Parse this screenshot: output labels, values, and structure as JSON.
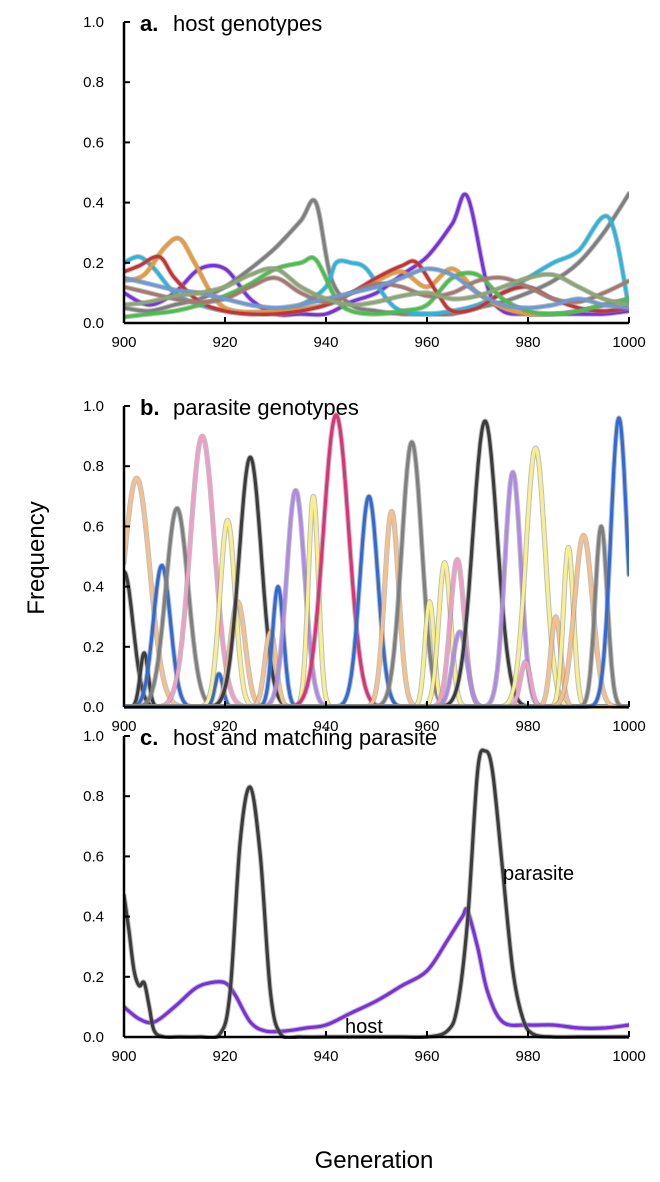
{
  "figure": {
    "ylabel": "Frequency",
    "xlabel": "Generation"
  },
  "chart_data": [
    {
      "type": "line",
      "panel_letter": "a.",
      "title": "host genotypes",
      "xlim": [
        900,
        1000
      ],
      "ylim": [
        0,
        1.0
      ],
      "xticks": [
        900,
        920,
        940,
        960,
        980,
        1000
      ],
      "yticks": [
        "0.0",
        "0.2",
        "0.4",
        "0.6",
        "0.8",
        "1.0"
      ],
      "grid": false,
      "series": [
        {
          "color": "#7b2ee6",
          "x": [
            900,
            905,
            910,
            915,
            920,
            925,
            930,
            935,
            940,
            945,
            950,
            955,
            960,
            965,
            968,
            972,
            975,
            980,
            985,
            990,
            995,
            1000
          ],
          "y": [
            0.1,
            0.06,
            0.1,
            0.18,
            0.18,
            0.08,
            0.03,
            0.03,
            0.03,
            0.07,
            0.1,
            0.16,
            0.22,
            0.33,
            0.42,
            0.12,
            0.04,
            0.03,
            0.03,
            0.03,
            0.03,
            0.04
          ]
        },
        {
          "color": "#7f7f7f",
          "x": [
            900,
            905,
            910,
            915,
            920,
            925,
            930,
            935,
            938,
            941,
            945,
            950,
            955,
            960,
            965,
            970,
            975,
            980,
            985,
            990,
            995,
            1000
          ],
          "y": [
            0.05,
            0.04,
            0.06,
            0.08,
            0.12,
            0.18,
            0.25,
            0.34,
            0.4,
            0.15,
            0.06,
            0.04,
            0.03,
            0.03,
            0.03,
            0.05,
            0.07,
            0.1,
            0.14,
            0.2,
            0.3,
            0.43
          ]
        },
        {
          "color": "#22b8e6",
          "x": [
            900,
            903,
            906,
            910,
            915,
            920,
            925,
            930,
            935,
            940,
            942,
            945,
            948,
            952,
            955,
            960,
            965,
            970,
            975,
            980,
            985,
            990,
            996,
            1000
          ],
          "y": [
            0.2,
            0.22,
            0.18,
            0.1,
            0.06,
            0.04,
            0.03,
            0.04,
            0.06,
            0.12,
            0.2,
            0.2,
            0.18,
            0.08,
            0.04,
            0.03,
            0.04,
            0.06,
            0.1,
            0.15,
            0.2,
            0.24,
            0.35,
            0.05
          ]
        },
        {
          "color": "#ee9a2e",
          "x": [
            900,
            904,
            908,
            911,
            914,
            918,
            922,
            930,
            940,
            945,
            950,
            955,
            960,
            965,
            970,
            975,
            980,
            985,
            990,
            995,
            1000
          ],
          "y": [
            0.14,
            0.16,
            0.25,
            0.28,
            0.2,
            0.08,
            0.04,
            0.04,
            0.06,
            0.1,
            0.14,
            0.17,
            0.12,
            0.18,
            0.1,
            0.05,
            0.03,
            0.03,
            0.04,
            0.06,
            0.08
          ]
        },
        {
          "color": "#cc3030",
          "x": [
            900,
            903,
            907,
            910,
            915,
            920,
            925,
            930,
            935,
            940,
            945,
            950,
            955,
            958,
            962,
            965,
            970,
            975,
            980,
            985,
            990,
            995,
            1000
          ],
          "y": [
            0.17,
            0.19,
            0.22,
            0.15,
            0.07,
            0.04,
            0.03,
            0.03,
            0.04,
            0.06,
            0.1,
            0.15,
            0.19,
            0.2,
            0.1,
            0.04,
            0.05,
            0.1,
            0.12,
            0.08,
            0.05,
            0.04,
            0.05
          ]
        },
        {
          "color": "#44c444",
          "x": [
            900,
            905,
            910,
            915,
            920,
            925,
            930,
            935,
            938,
            942,
            945,
            950,
            955,
            960,
            965,
            970,
            975,
            980,
            985,
            990,
            995,
            1000
          ],
          "y": [
            0.02,
            0.03,
            0.04,
            0.06,
            0.09,
            0.13,
            0.18,
            0.2,
            0.21,
            0.08,
            0.04,
            0.03,
            0.04,
            0.06,
            0.15,
            0.16,
            0.08,
            0.04,
            0.03,
            0.04,
            0.06,
            0.08
          ]
        },
        {
          "color": "#a87870",
          "x": [
            900,
            905,
            910,
            915,
            920,
            925,
            930,
            935,
            940,
            945,
            950,
            955,
            960,
            965,
            970,
            975,
            980,
            985,
            990,
            995,
            1000
          ],
          "y": [
            0.12,
            0.1,
            0.08,
            0.07,
            0.08,
            0.12,
            0.15,
            0.1,
            0.07,
            0.1,
            0.13,
            0.12,
            0.09,
            0.1,
            0.14,
            0.15,
            0.12,
            0.08,
            0.07,
            0.1,
            0.14
          ]
        },
        {
          "color": "#6a9ad8",
          "x": [
            900,
            905,
            910,
            915,
            920,
            925,
            930,
            935,
            940,
            945,
            950,
            955,
            960,
            965,
            970,
            975,
            980,
            985,
            990,
            995,
            1000
          ],
          "y": [
            0.15,
            0.13,
            0.11,
            0.1,
            0.08,
            0.06,
            0.05,
            0.06,
            0.08,
            0.1,
            0.12,
            0.15,
            0.18,
            0.16,
            0.1,
            0.06,
            0.05,
            0.06,
            0.08,
            0.06,
            0.05
          ]
        },
        {
          "color": "#8aa870",
          "x": [
            900,
            905,
            910,
            915,
            920,
            925,
            930,
            935,
            940,
            945,
            950,
            955,
            960,
            965,
            970,
            975,
            980,
            985,
            990,
            995,
            1000
          ],
          "y": [
            0.06,
            0.07,
            0.09,
            0.1,
            0.12,
            0.16,
            0.18,
            0.12,
            0.08,
            0.06,
            0.07,
            0.09,
            0.1,
            0.08,
            0.09,
            0.12,
            0.15,
            0.16,
            0.12,
            0.08,
            0.06
          ]
        }
      ]
    },
    {
      "type": "line",
      "panel_letter": "b.",
      "title": "parasite genotypes",
      "xlim": [
        900,
        1000
      ],
      "ylim": [
        0,
        1.0
      ],
      "xticks": [
        900,
        920,
        940,
        960,
        980,
        1000
      ],
      "yticks": [
        "0.0",
        "0.2",
        "0.4",
        "0.6",
        "0.8",
        "1.0"
      ],
      "grid": false,
      "peaks": [
        {
          "color": "#f7c08a",
          "x": 902.5,
          "y": 0.76,
          "w": 2.6
        },
        {
          "color": "#3c3c3c",
          "x": 900,
          "y": 0.45,
          "w": 1.8
        },
        {
          "color": "#3c3c3c",
          "x": 904,
          "y": 0.18,
          "w": 0.8
        },
        {
          "color": "#2e6ad8",
          "x": 907.5,
          "y": 0.47,
          "w": 1.7
        },
        {
          "color": "#7f7f7f",
          "x": 910.5,
          "y": 0.66,
          "w": 2.2
        },
        {
          "color": "#f09ec8",
          "x": 915.5,
          "y": 0.9,
          "w": 2.4
        },
        {
          "color": "#2e6ad8",
          "x": 918.8,
          "y": 0.11,
          "w": 0.8
        },
        {
          "color": "#f7f08c",
          "x": 920.5,
          "y": 0.62,
          "w": 1.5
        },
        {
          "color": "#f7c08a",
          "x": 922.5,
          "y": 0.35,
          "w": 1.5
        },
        {
          "color": "#3c3c3c",
          "x": 925,
          "y": 0.83,
          "w": 2.2
        },
        {
          "color": "#f7c08a",
          "x": 929,
          "y": 0.25,
          "w": 1.1
        },
        {
          "color": "#2e6ad8",
          "x": 930.5,
          "y": 0.4,
          "w": 1.1
        },
        {
          "color": "#b088e6",
          "x": 934,
          "y": 0.72,
          "w": 1.8
        },
        {
          "color": "#f7f08c",
          "x": 937.5,
          "y": 0.7,
          "w": 1.0
        },
        {
          "color": "#e0307a",
          "x": 942,
          "y": 0.97,
          "w": 2.5
        },
        {
          "color": "#2e6ad8",
          "x": 948.5,
          "y": 0.7,
          "w": 1.8
        },
        {
          "color": "#f7c08a",
          "x": 953,
          "y": 0.65,
          "w": 1.4
        },
        {
          "color": "#7f7f7f",
          "x": 957,
          "y": 0.88,
          "w": 2.0
        },
        {
          "color": "#f7f08c",
          "x": 960.5,
          "y": 0.35,
          "w": 0.9
        },
        {
          "color": "#f7f08c",
          "x": 963.5,
          "y": 0.48,
          "w": 1.2
        },
        {
          "color": "#f09ec8",
          "x": 966,
          "y": 0.49,
          "w": 1.4
        },
        {
          "color": "#b088e6",
          "x": 966.5,
          "y": 0.25,
          "w": 1.4
        },
        {
          "color": "#3c3c3c",
          "x": 971.5,
          "y": 0.95,
          "w": 2.4
        },
        {
          "color": "#b088e6",
          "x": 977,
          "y": 0.78,
          "w": 1.6
        },
        {
          "color": "#f09ec8",
          "x": 979.5,
          "y": 0.15,
          "w": 1.0
        },
        {
          "color": "#f7f08c",
          "x": 981.5,
          "y": 0.86,
          "w": 1.9
        },
        {
          "color": "#f7c08a",
          "x": 985.5,
          "y": 0.3,
          "w": 1.0
        },
        {
          "color": "#f7f08c",
          "x": 988,
          "y": 0.53,
          "w": 1.0
        },
        {
          "color": "#f7c08a",
          "x": 991,
          "y": 0.57,
          "w": 1.8
        },
        {
          "color": "#7f7f7f",
          "x": 994.5,
          "y": 0.6,
          "w": 1.2
        },
        {
          "color": "#2e6ad8",
          "x": 998,
          "y": 0.96,
          "w": 1.6
        }
      ]
    },
    {
      "type": "line",
      "panel_letter": "c.",
      "title": "host and matching parasite",
      "xlim": [
        900,
        1000
      ],
      "ylim": [
        0,
        1.0
      ],
      "xticks": [
        900,
        920,
        940,
        960,
        980,
        1000
      ],
      "yticks": [
        "0.0",
        "0.2",
        "0.4",
        "0.6",
        "0.8",
        "1.0"
      ],
      "grid": false,
      "annotations": [
        "parasite",
        "host"
      ],
      "series": [
        {
          "name": "host",
          "color": "#7b2ee6",
          "x": [
            900,
            903,
            906,
            910,
            914,
            917,
            920,
            922,
            925,
            928,
            932,
            936,
            940,
            945,
            950,
            955,
            960,
            964,
            967,
            968,
            970,
            972,
            975,
            980,
            985,
            990,
            995,
            1000
          ],
          "y": [
            0.1,
            0.06,
            0.05,
            0.1,
            0.16,
            0.18,
            0.18,
            0.14,
            0.05,
            0.02,
            0.02,
            0.03,
            0.04,
            0.08,
            0.12,
            0.17,
            0.22,
            0.32,
            0.4,
            0.42,
            0.3,
            0.15,
            0.05,
            0.04,
            0.04,
            0.03,
            0.03,
            0.04
          ]
        },
        {
          "name": "parasite",
          "color": "#3c3c3c",
          "x": [
            900,
            901,
            902,
            903,
            904,
            905,
            906,
            908,
            911,
            915,
            919,
            921,
            923,
            925,
            927,
            929,
            931,
            935,
            940,
            945,
            950,
            955,
            960,
            964,
            966,
            968,
            970,
            971.5,
            973,
            975,
            977,
            979,
            981,
            985,
            990,
            995,
            1000
          ],
          "y": [
            0.47,
            0.35,
            0.22,
            0.17,
            0.18,
            0.1,
            0.02,
            0.0,
            0.0,
            0.0,
            0.01,
            0.15,
            0.65,
            0.83,
            0.6,
            0.15,
            0.01,
            0.0,
            0.0,
            0.0,
            0.0,
            0.0,
            0.0,
            0.02,
            0.1,
            0.38,
            0.88,
            0.95,
            0.88,
            0.55,
            0.22,
            0.06,
            0.01,
            0.0,
            0.0,
            0.0,
            0.0
          ]
        }
      ]
    }
  ]
}
